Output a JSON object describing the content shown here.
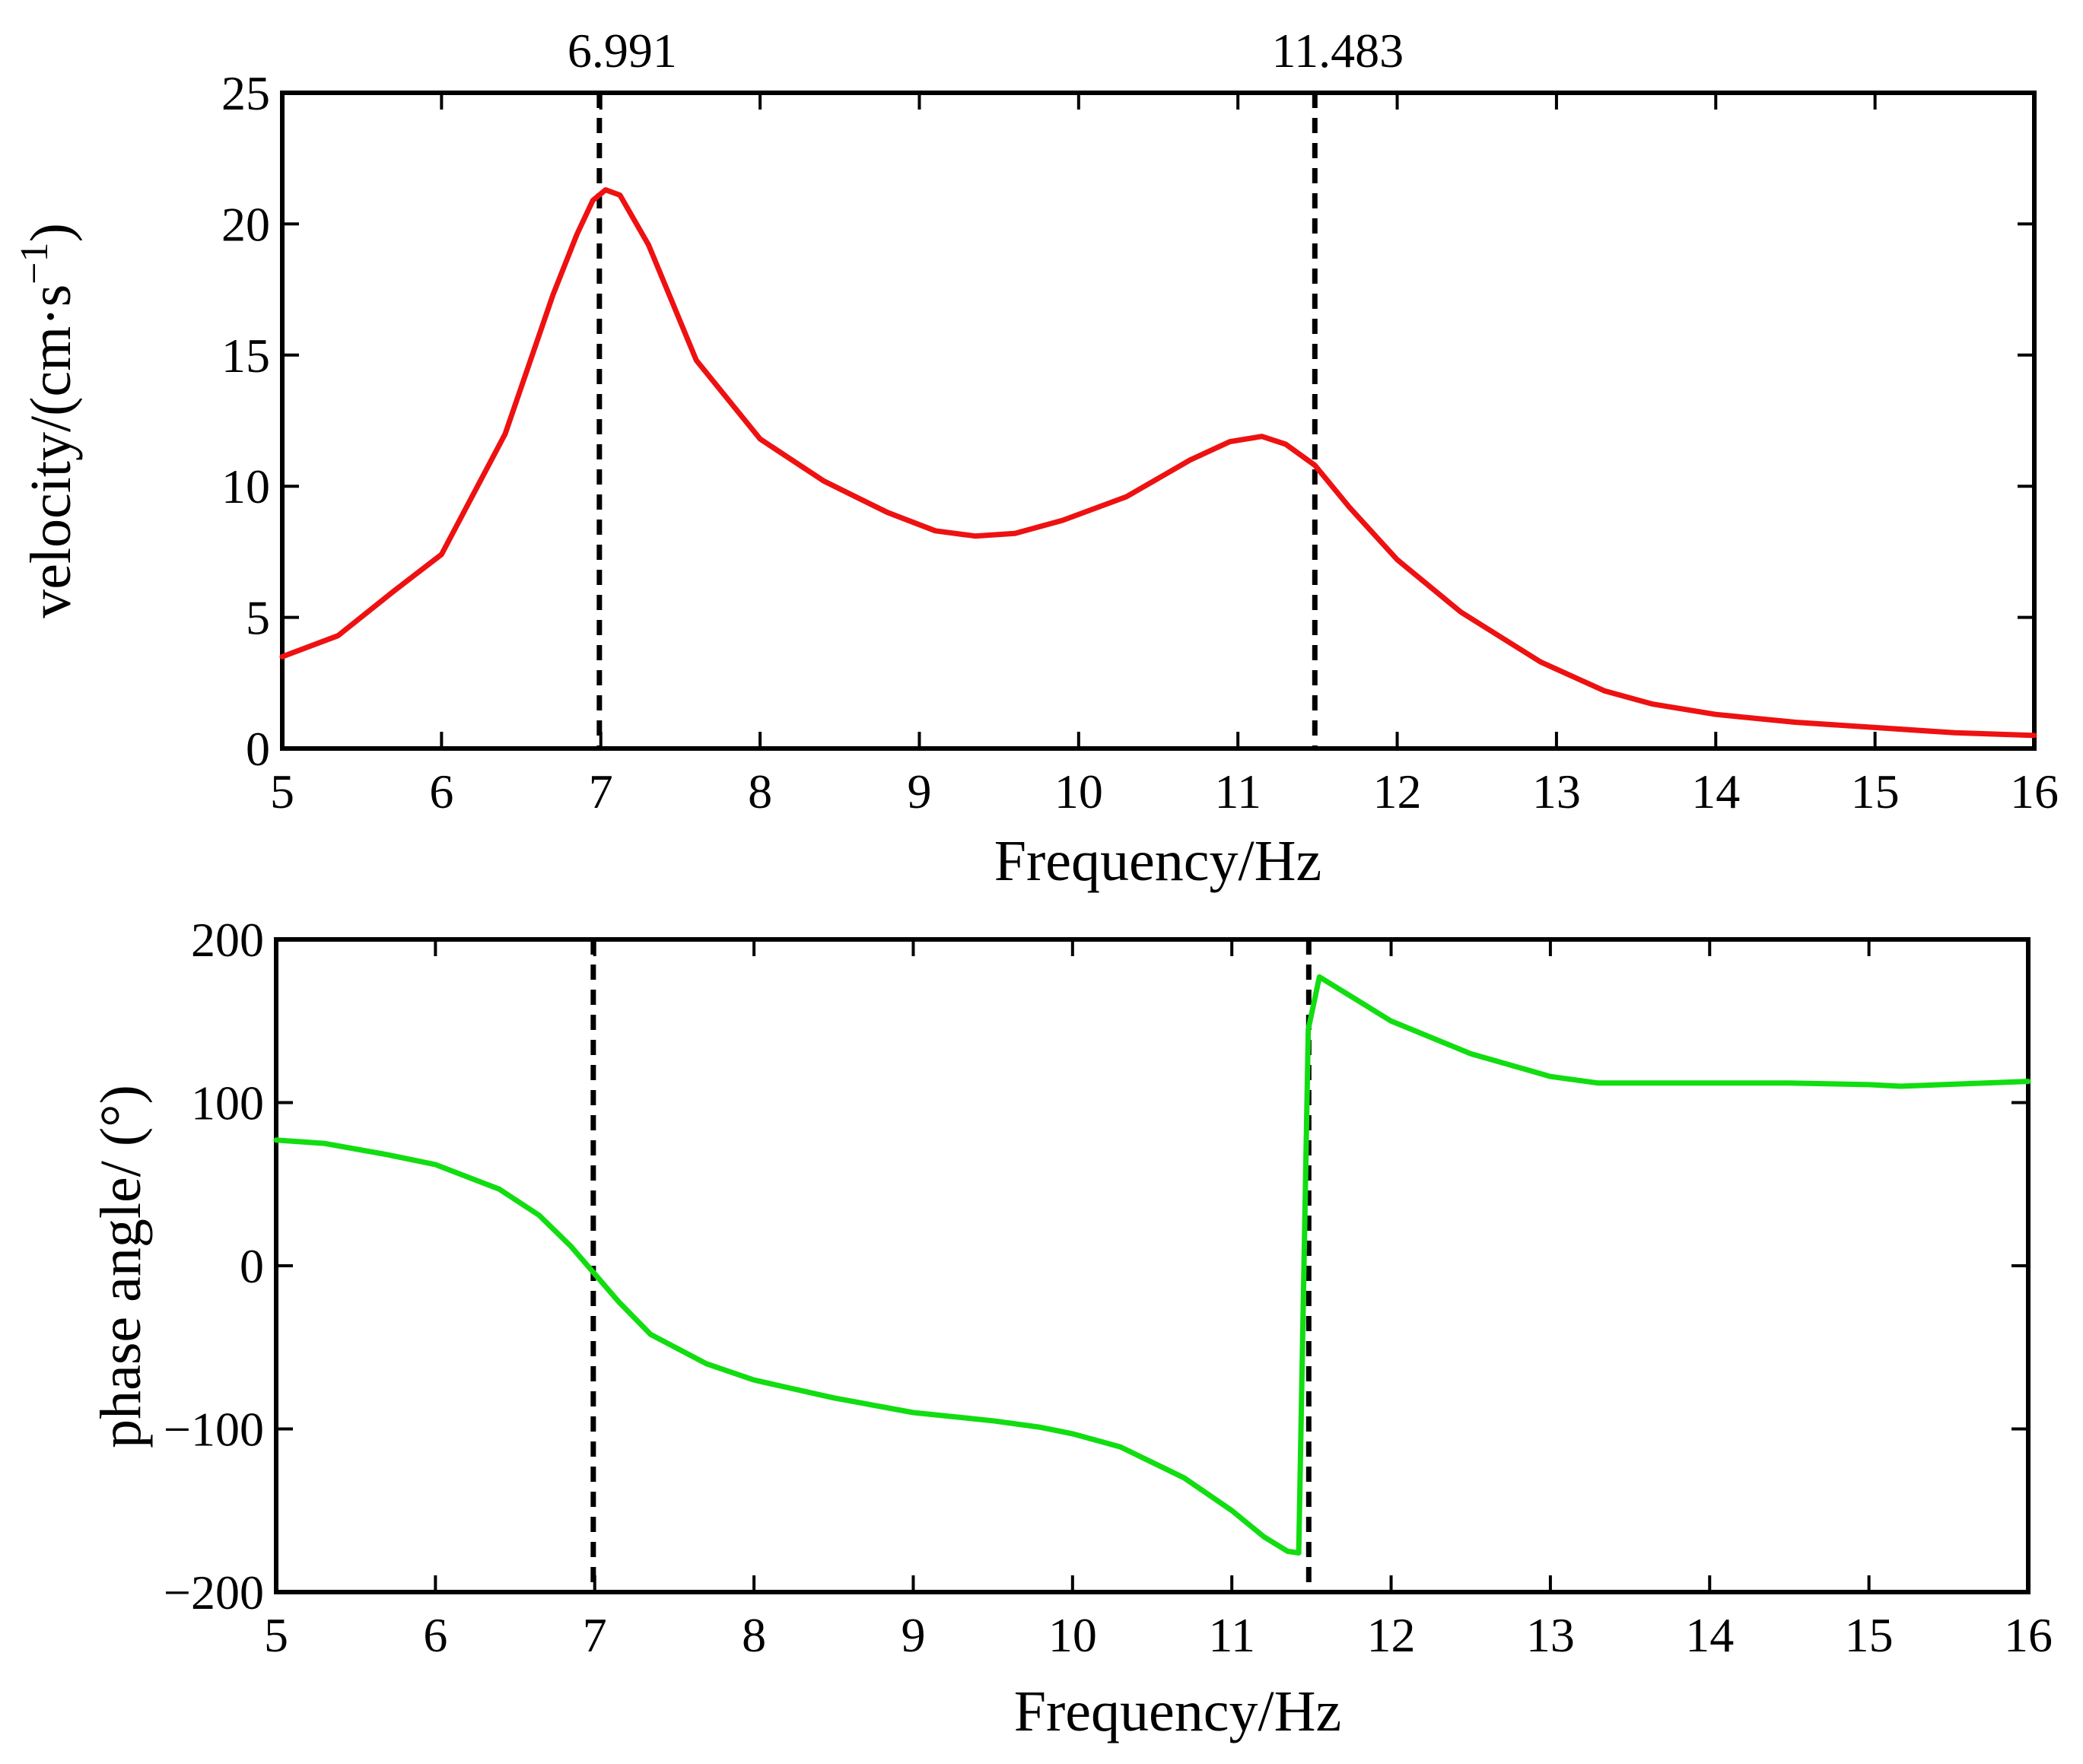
{
  "colors": {
    "velocity_series": "#ee1111",
    "phase_series": "#11dd11",
    "axes": "#000000",
    "marker_lines": "#000000"
  },
  "markers": [
    {
      "label": "6.991",
      "x": 6.991
    },
    {
      "label": "11.483",
      "x": 11.483
    }
  ],
  "chart_data": [
    {
      "type": "line",
      "title": "",
      "xlabel": "Frequency/Hz",
      "ylabel": "velocity/(cm·s",
      "ylabel_sup": "−1",
      "ylabel_close": ")",
      "xlim": [
        5,
        16
      ],
      "ylim": [
        0,
        25
      ],
      "xticks": [
        5,
        6,
        7,
        8,
        9,
        10,
        11,
        12,
        13,
        14,
        15,
        16
      ],
      "yticks": [
        0,
        5,
        10,
        15,
        20,
        25
      ],
      "ytick_labels": [
        "0",
        "5",
        "10",
        "15",
        "20",
        "25"
      ],
      "grid": false,
      "series": [
        {
          "name": "velocity",
          "color": "#ee1111",
          "x": [
            5.0,
            5.35,
            5.7,
            6.0,
            6.4,
            6.7,
            6.85,
            6.95,
            7.03,
            7.12,
            7.3,
            7.6,
            8.0,
            8.4,
            8.8,
            9.1,
            9.35,
            9.6,
            9.9,
            10.3,
            10.7,
            10.95,
            11.15,
            11.3,
            11.483,
            11.7,
            12.0,
            12.4,
            12.9,
            13.3,
            13.6,
            14.0,
            14.5,
            15.0,
            15.5,
            16.0
          ],
          "y": [
            3.5,
            4.3,
            6.0,
            7.4,
            12.0,
            17.3,
            19.6,
            20.9,
            21.3,
            21.1,
            19.2,
            14.8,
            11.8,
            10.2,
            9.0,
            8.3,
            8.1,
            8.2,
            8.7,
            9.6,
            11.0,
            11.7,
            11.9,
            11.6,
            10.8,
            9.2,
            7.2,
            5.2,
            3.3,
            2.2,
            1.7,
            1.3,
            1.0,
            0.8,
            0.6,
            0.5
          ]
        }
      ]
    },
    {
      "type": "line",
      "title": "",
      "xlabel": "Frequency/Hz",
      "ylabel": "phase angle/ (°)",
      "xlim": [
        5,
        16
      ],
      "ylim": [
        -200,
        200
      ],
      "xticks": [
        5,
        6,
        7,
        8,
        9,
        10,
        11,
        12,
        13,
        14,
        15,
        16
      ],
      "yticks": [
        -200,
        -100,
        0,
        100,
        200
      ],
      "ytick_labels": [
        "−200",
        "−100",
        "0",
        "100",
        "200"
      ],
      "grid": false,
      "series": [
        {
          "name": "phase angle",
          "color": "#11dd11",
          "x": [
            5.0,
            5.3,
            5.7,
            6.0,
            6.4,
            6.65,
            6.85,
            7.0,
            7.15,
            7.35,
            7.7,
            8.0,
            8.5,
            9.0,
            9.5,
            9.8,
            10.0,
            10.3,
            10.7,
            11.0,
            11.2,
            11.35,
            11.42,
            11.48,
            11.55,
            11.8,
            12.0,
            12.5,
            13.0,
            13.3,
            14.0,
            14.5,
            15.0,
            15.2,
            16.0
          ],
          "y": [
            77,
            75,
            68,
            62,
            47,
            31,
            12,
            -5,
            -22,
            -42,
            -60,
            -70,
            -81,
            -90,
            -95,
            -99,
            -103,
            -111,
            -130,
            -150,
            -166,
            -175,
            -176,
            145,
            177,
            162,
            150,
            130,
            116,
            112,
            112,
            112,
            111,
            110,
            113
          ]
        }
      ]
    }
  ]
}
